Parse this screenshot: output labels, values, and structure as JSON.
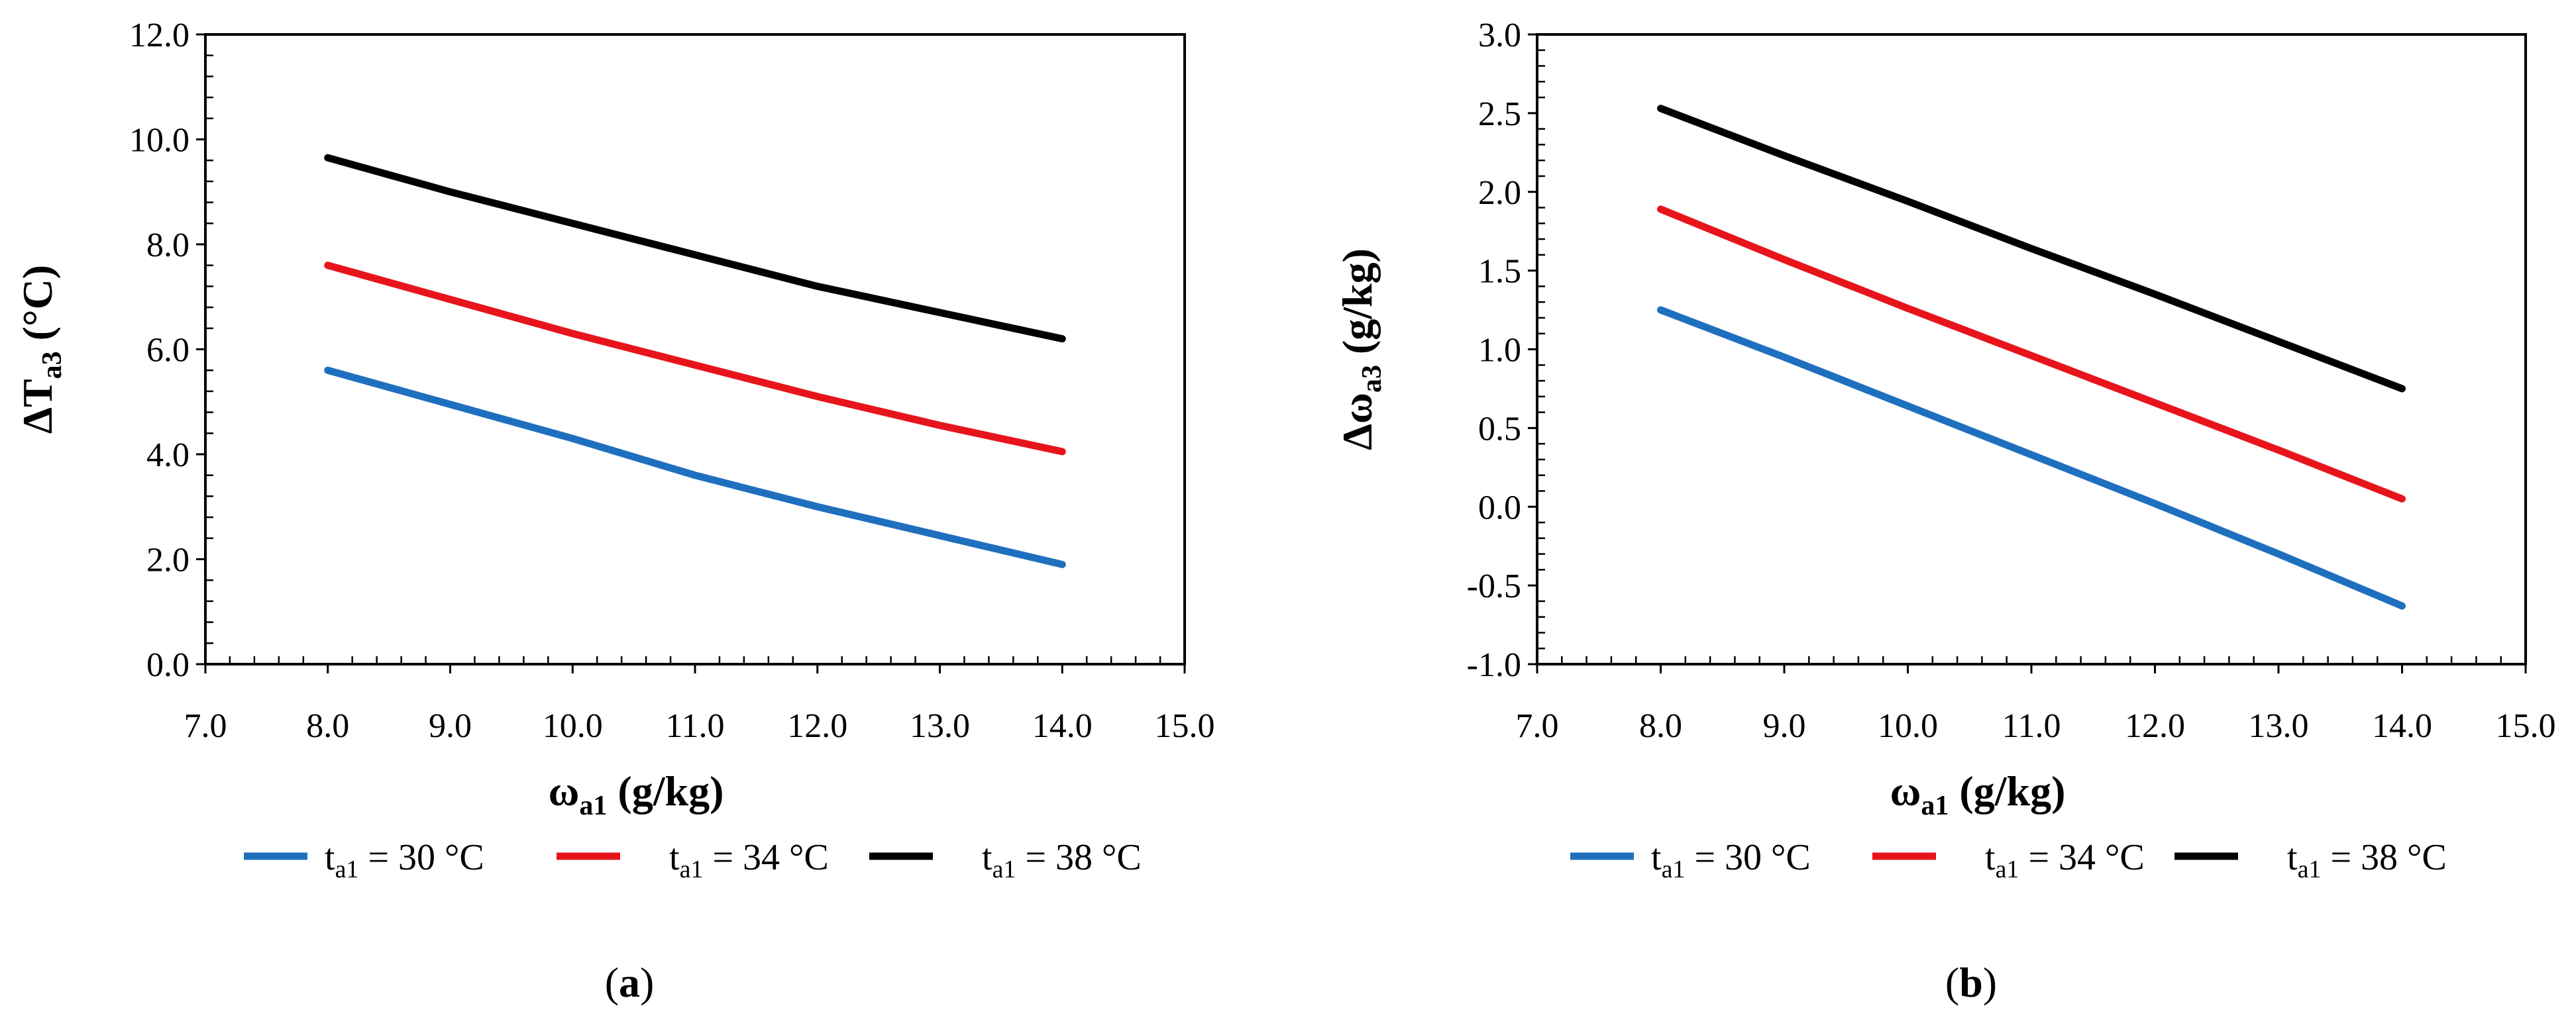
{
  "chart_data": [
    {
      "type": "line",
      "panel_label": "a",
      "x": [
        8.0,
        9.0,
        10.0,
        11.0,
        12.0,
        13.0,
        14.0
      ],
      "xlim": [
        7.0,
        15.0
      ],
      "xticks": [
        "7.0",
        "8.0",
        "9.0",
        "10.0",
        "11.0",
        "12.0",
        "13.0",
        "14.0",
        "15.0"
      ],
      "xlabel": {
        "main": "ω",
        "sub": "a1",
        "unit": " (g/kg)"
      },
      "ylim": [
        0.0,
        12.0
      ],
      "yticks": [
        "0.0",
        "2.0",
        "4.0",
        "6.0",
        "8.0",
        "10.0",
        "12.0"
      ],
      "ylabel": {
        "main": "ΔT",
        "sub": "a3",
        "unit": " (°C)"
      },
      "series": [
        {
          "name": "t_a1 = 30 °C",
          "color": "#1f6fbf",
          "values": [
            5.6,
            4.95,
            4.3,
            3.6,
            3.0,
            2.45,
            1.9
          ]
        },
        {
          "name": "t_a1 = 34 °C",
          "color": "#e8141c",
          "values": [
            7.6,
            6.95,
            6.3,
            5.7,
            5.1,
            4.55,
            4.05
          ]
        },
        {
          "name": "t_a1 = 38 °C",
          "color": "#000000",
          "values": [
            9.65,
            9.0,
            8.4,
            7.8,
            7.2,
            6.7,
            6.2
          ]
        }
      ],
      "legend": {
        "position": "bottom",
        "items": [
          {
            "prefix": "t",
            "sub": "a1",
            "suffix": " = 30 °C"
          },
          {
            "prefix": "t",
            "sub": "a1",
            "suffix": " = 34 °C"
          },
          {
            "prefix": "t",
            "sub": "a1",
            "suffix": " = 38 °C"
          }
        ]
      }
    },
    {
      "type": "line",
      "panel_label": "b",
      "x": [
        8.0,
        9.0,
        10.0,
        11.0,
        12.0,
        13.0,
        14.0
      ],
      "xlim": [
        7.0,
        15.0
      ],
      "xticks": [
        "7.0",
        "8.0",
        "9.0",
        "10.0",
        "11.0",
        "12.0",
        "13.0",
        "14.0",
        "15.0"
      ],
      "xlabel": {
        "main": "ω",
        "sub": "a1",
        "unit": " (g/kg)"
      },
      "ylim": [
        -1.0,
        3.0
      ],
      "yticks": [
        "-1.0",
        "-0.5",
        "0.0",
        "0.5",
        "1.0",
        "1.5",
        "2.0",
        "2.5",
        "3.0"
      ],
      "ylabel": {
        "main": "Δω",
        "sub": "a3",
        "unit": " (g/kg)"
      },
      "series": [
        {
          "name": "t_a1 = 30 °C",
          "color": "#1f6fbf",
          "values": [
            1.25,
            0.95,
            0.64,
            0.33,
            0.02,
            -0.3,
            -0.63
          ]
        },
        {
          "name": "t_a1 = 34 °C",
          "color": "#e8141c",
          "values": [
            1.89,
            1.57,
            1.26,
            0.96,
            0.66,
            0.36,
            0.05
          ]
        },
        {
          "name": "t_a1 = 38 °C",
          "color": "#000000",
          "values": [
            2.53,
            2.23,
            1.94,
            1.64,
            1.35,
            1.05,
            0.75
          ]
        }
      ],
      "legend": {
        "position": "bottom",
        "items": [
          {
            "prefix": "t",
            "sub": "a1",
            "suffix": " = 30 °C"
          },
          {
            "prefix": "t",
            "sub": "a1",
            "suffix": " = 34 °C"
          },
          {
            "prefix": "t",
            "sub": "a1",
            "suffix": " = 38 °C"
          }
        ]
      }
    }
  ]
}
